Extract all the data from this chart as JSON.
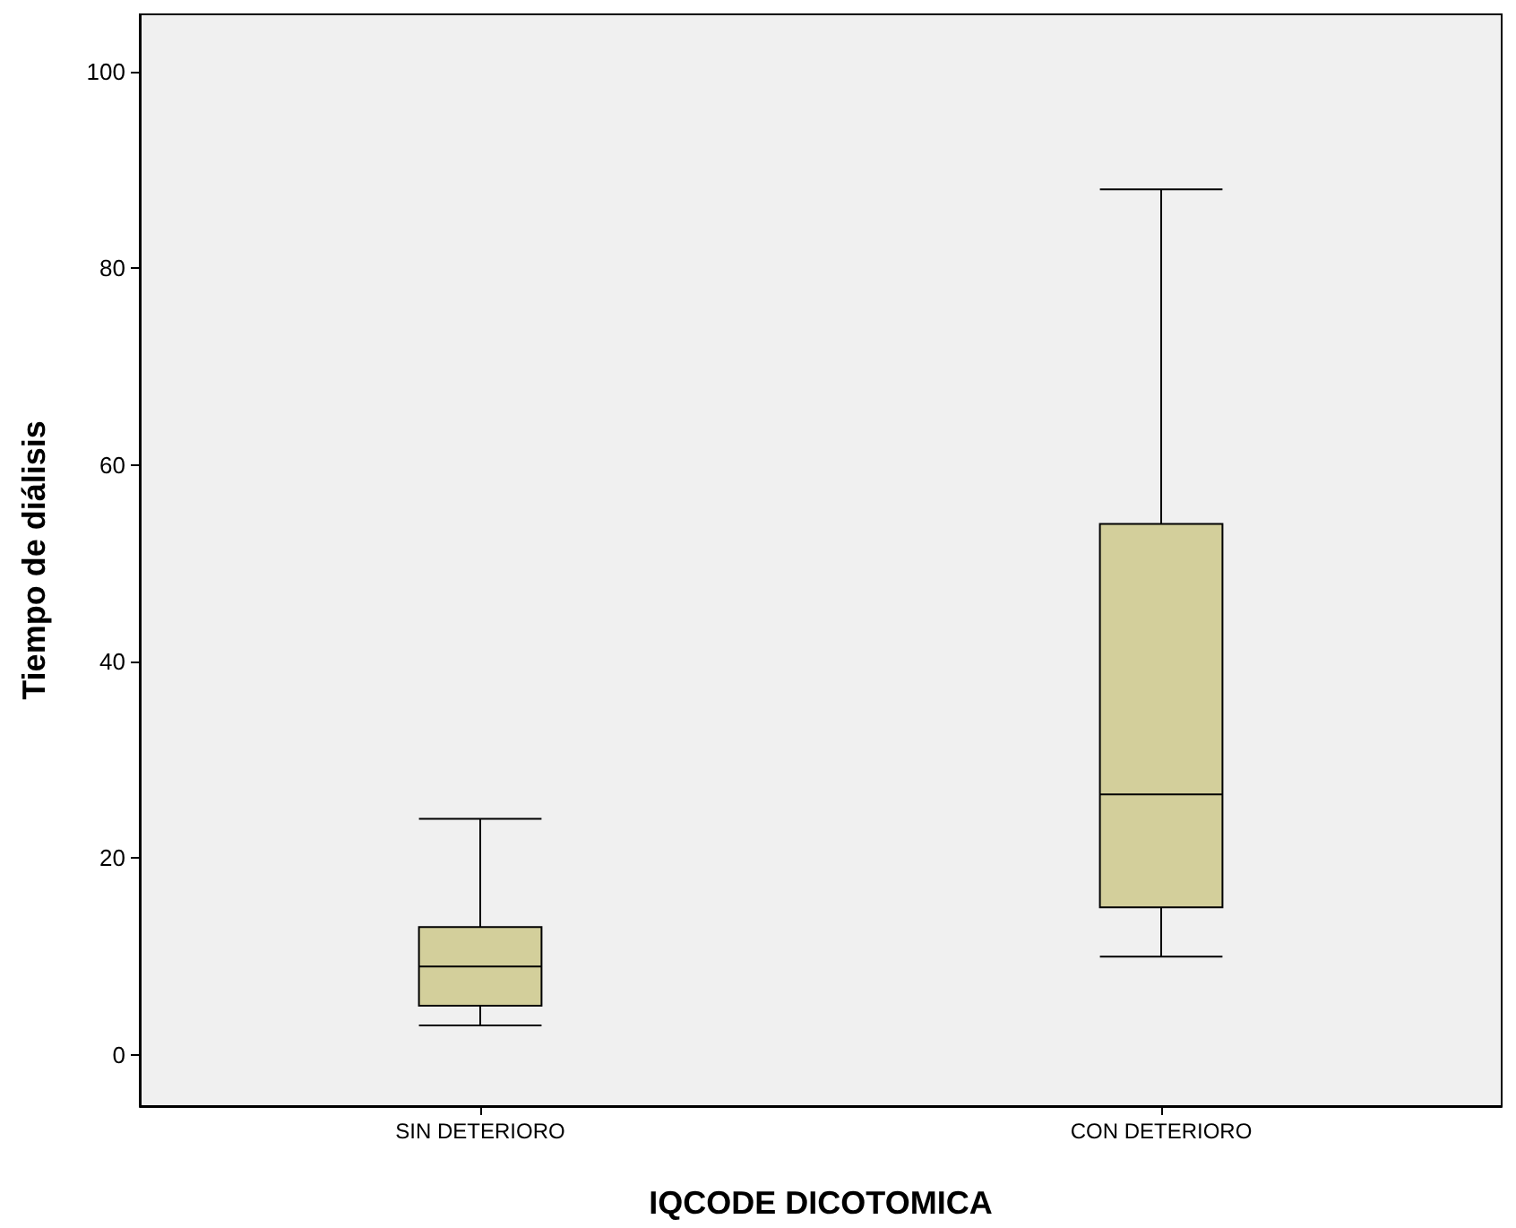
{
  "chart_data": {
    "type": "box",
    "xlabel": "IQCODE DICOTOMICA",
    "ylabel": "Tiempo de diálisis",
    "categories": [
      "SIN DETERIORO",
      "CON DETERIORO"
    ],
    "boxes": [
      {
        "low": 3,
        "q1": 5,
        "median": 9,
        "q3": 13,
        "high": 24
      },
      {
        "low": 10,
        "q1": 15,
        "median": 26.5,
        "q3": 54,
        "high": 88
      }
    ],
    "color": "#d3cf9b",
    "ylim": [
      -5.2,
      105.8
    ],
    "yticks": [
      0,
      20,
      40,
      60,
      80,
      100
    ],
    "grid": false
  }
}
